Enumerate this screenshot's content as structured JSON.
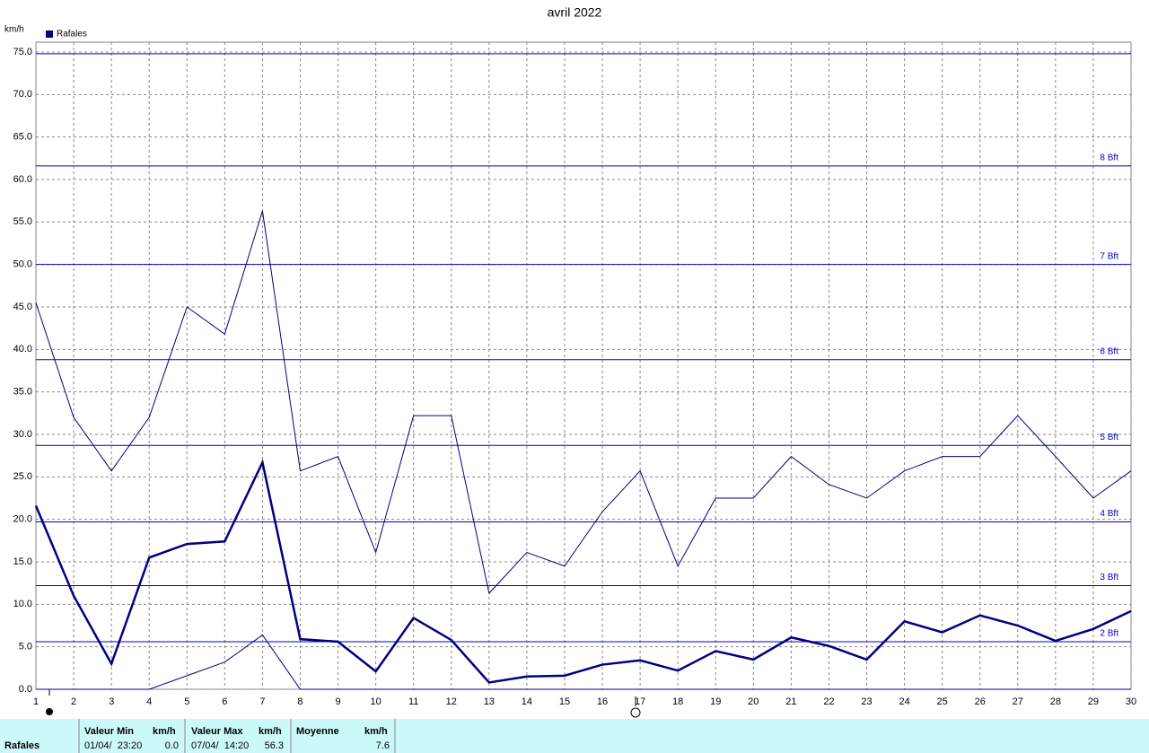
{
  "chart_data": {
    "type": "line",
    "title": "avril 2022",
    "y_unit": "km/h",
    "x": [
      1,
      2,
      3,
      4,
      5,
      6,
      7,
      8,
      9,
      10,
      11,
      12,
      13,
      14,
      15,
      16,
      17,
      18,
      19,
      20,
      21,
      22,
      23,
      24,
      25,
      26,
      27,
      28,
      29,
      30
    ],
    "xlim": [
      1,
      30
    ],
    "xticks": [
      1,
      2,
      3,
      4,
      5,
      6,
      7,
      8,
      9,
      10,
      11,
      12,
      13,
      14,
      15,
      16,
      17,
      18,
      19,
      20,
      21,
      22,
      23,
      24,
      25,
      26,
      27,
      28,
      29,
      30
    ],
    "ylim": [
      0,
      75
    ],
    "yticks": [
      {
        "value": 0,
        "label": "0.0"
      },
      {
        "value": 5,
        "label": "5.0"
      },
      {
        "value": 10,
        "label": "10.0"
      },
      {
        "value": 15,
        "label": "15.0"
      },
      {
        "value": 20,
        "label": "20.0"
      },
      {
        "value": 25,
        "label": "25.0"
      },
      {
        "value": 30,
        "label": "30.0"
      },
      {
        "value": 35,
        "label": "35.0"
      },
      {
        "value": 40,
        "label": "40.0"
      },
      {
        "value": 45,
        "label": "45.0"
      },
      {
        "value": 50,
        "label": "50.0"
      },
      {
        "value": 55,
        "label": "55.0"
      },
      {
        "value": 60,
        "label": "60.0"
      },
      {
        "value": 65,
        "label": "65.0"
      },
      {
        "value": 70,
        "label": "70.0"
      },
      {
        "value": 75,
        "label": "75.0"
      }
    ],
    "grid": true,
    "series": [
      {
        "name": "Rafales",
        "color": "#000080",
        "width": 2.5,
        "values": [
          21.6,
          11.0,
          3.0,
          15.5,
          17.1,
          17.4,
          26.7,
          5.9,
          5.6,
          2.1,
          8.4,
          5.8,
          0.8,
          1.5,
          1.6,
          2.9,
          3.4,
          2.2,
          4.5,
          3.5,
          6.1,
          5.1,
          3.5,
          8.0,
          6.7,
          8.7,
          7.5,
          5.7,
          7.1,
          9.2
        ]
      },
      {
        "color": "#000080",
        "width": 1,
        "values": [
          45.5,
          32.0,
          25.7,
          32.0,
          45.0,
          41.8,
          56.3,
          25.7,
          27.4,
          16.1,
          32.2,
          32.2,
          11.3,
          16.1,
          14.5,
          20.9,
          25.7,
          14.5,
          22.5,
          22.5,
          27.4,
          24.1,
          22.5,
          25.7,
          27.4,
          27.4,
          32.2,
          27.4,
          22.5,
          25.7
        ]
      },
      {
        "color": "#000080",
        "width": 1,
        "values": [
          0,
          0,
          0,
          0,
          1.6,
          3.2,
          6.4,
          0,
          0,
          0,
          0,
          0,
          0,
          0,
          0,
          0,
          0,
          0,
          0,
          0,
          0,
          0,
          0,
          0,
          0,
          0,
          0,
          0,
          0,
          0
        ]
      }
    ],
    "ref_lines": [
      {
        "value": 5.6,
        "label": "2 Bft"
      },
      {
        "value": 12.2,
        "label": "3 Bft"
      },
      {
        "value": 19.7,
        "label": "4 Bft"
      },
      {
        "value": 28.7,
        "label": "5 Bft"
      },
      {
        "value": 38.8,
        "label": "6 Bft"
      },
      {
        "value": 50.0,
        "label": "7 Bft"
      },
      {
        "value": 61.6,
        "label": "8 Bft"
      },
      {
        "value": 74.8
      }
    ],
    "ref_color": "#0000cc"
  },
  "table": {
    "header": [
      "Valeur Min",
      "km/h",
      "Valeur Max",
      "km/h",
      "Moyenne",
      "km/h"
    ],
    "row": [
      "Rafales",
      "01/04/  23:20",
      "0.0",
      "07/04/  14:20",
      "56.3",
      "7.6"
    ]
  }
}
